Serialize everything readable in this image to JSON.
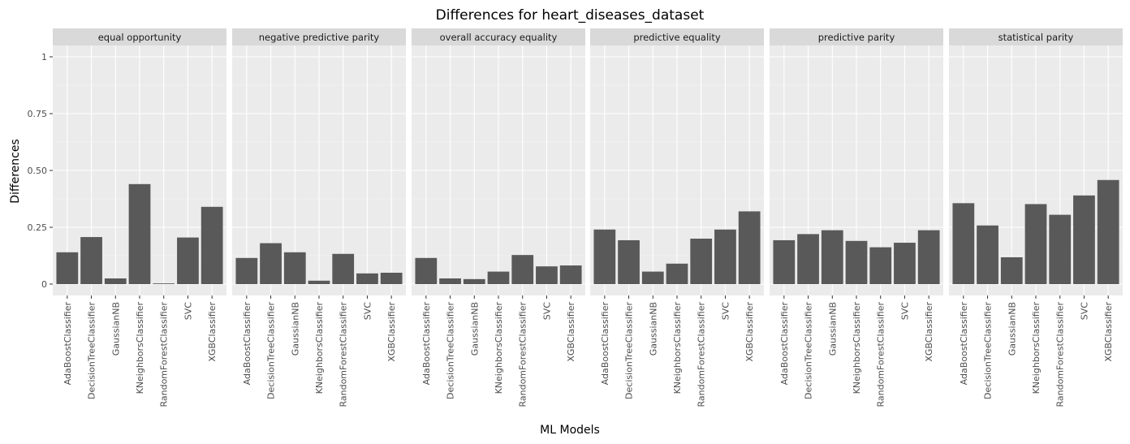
{
  "chart_data": {
    "type": "bar",
    "title": "Differences for heart_diseases_dataset",
    "xlabel": "ML Models",
    "ylabel": "Differences",
    "ylim": [
      -0.05,
      1.05
    ],
    "yticks": [
      0,
      0.25,
      0.5,
      0.75,
      1
    ],
    "ytick_labels": [
      "0",
      "0.25",
      "0.50",
      "0.75",
      "1"
    ],
    "grid": true,
    "categories": [
      "AdaBoostClassifier",
      "DecisionTreeClassifier",
      "GaussianNB",
      "KNeighborsClassifier",
      "RandomForestClassifier",
      "SVC",
      "XGBClassifier"
    ],
    "bar_color": "#595959",
    "panel_color": "#ebebeb",
    "strip_color": "#d9d9d9",
    "facets": [
      {
        "name": "equal opportunity",
        "values": [
          0.14,
          0.207,
          0.025,
          0.44,
          0.003,
          0.205,
          0.34
        ]
      },
      {
        "name": "negative predictive parity",
        "values": [
          0.115,
          0.18,
          0.14,
          0.015,
          0.133,
          0.047,
          0.05
        ]
      },
      {
        "name": "overall accuracy equality",
        "values": [
          0.115,
          0.025,
          0.022,
          0.055,
          0.128,
          0.078,
          0.082
        ]
      },
      {
        "name": "predictive equality",
        "values": [
          0.24,
          0.193,
          0.055,
          0.09,
          0.2,
          0.24,
          0.32
        ]
      },
      {
        "name": "predictive parity",
        "values": [
          0.193,
          0.22,
          0.237,
          0.19,
          0.162,
          0.182,
          0.237
        ]
      },
      {
        "name": "statistical parity",
        "values": [
          0.356,
          0.258,
          0.118,
          0.352,
          0.305,
          0.39,
          0.458
        ]
      }
    ]
  }
}
